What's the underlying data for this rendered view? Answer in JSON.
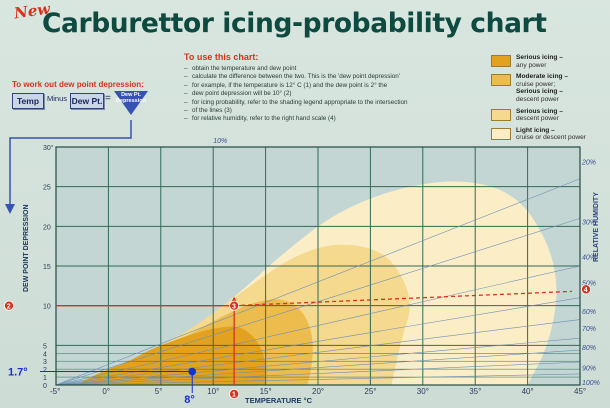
{
  "header": {
    "new_badge": "New",
    "title": "Carburettor icing-probability chart"
  },
  "dew_point_help": {
    "heading": "To work out dew point depression:",
    "temp_label": "Temp",
    "minus_label": "Minus",
    "dewpt_label": "Dew Pt.",
    "equals_label": "=",
    "result_line1": "Dew Pt.",
    "result_line2": "Depression",
    "result_marker": "2"
  },
  "how_to_use": {
    "heading": "To use this chart:",
    "steps": [
      "obtain the temperature and dew point",
      "calculate the difference between the two. This is the 'dew point depression'",
      "for example, if the temperature is 12° C (1) and the dew point is 2° the",
      "dew point depression will be 10° (2)",
      "for icing probability, refer to the shading legend appropriate to the intersection",
      "of the lines (3)",
      "for relative humidity, refer to the right hand scale (4)"
    ]
  },
  "legend": [
    {
      "label": "Serious icing –",
      "sublabel": "any power",
      "color": "#e2a21f"
    },
    {
      "label": "Moderate icing –",
      "sublabel": "cruise power;",
      "label2": "Serious icing –",
      "sublabel2": "descent power",
      "color": "#ecbd4c"
    },
    {
      "label": "Serious icing –",
      "sublabel": "descent power",
      "color": "#f4d98e"
    },
    {
      "label": "Light icing –",
      "sublabel": "cruise or descent power",
      "color": "#fbeec7"
    }
  ],
  "chart_data": {
    "type": "area",
    "title": "Carburettor icing-probability chart",
    "xlabel": "TEMPERATURE °C",
    "ylabel": "DEW POINT DEPRESSION",
    "y2label": "RELATIVE HUMIDITY",
    "xlim": [
      -5,
      45
    ],
    "ylim": [
      0,
      30
    ],
    "x_ticks": [
      "-5°",
      "0°",
      "5°",
      "10°",
      "15°",
      "20°",
      "25°",
      "30°",
      "35°",
      "40°",
      "45°"
    ],
    "x_tick_values": [
      -5,
      0,
      5,
      10,
      15,
      20,
      25,
      30,
      35,
      40,
      45
    ],
    "y_ticks": [
      "0",
      "1",
      "2",
      "3",
      "4",
      "5",
      "10",
      "15",
      "20",
      "25",
      "30°"
    ],
    "y_tick_values": [
      0,
      1,
      2,
      3,
      4,
      5,
      10,
      15,
      20,
      25,
      30
    ],
    "humidity_labels": [
      {
        "label": "10%",
        "y": 30
      },
      {
        "label": "20%",
        "y": 28.2
      },
      {
        "label": "30%",
        "y": 20.6
      },
      {
        "label": "40%",
        "y": 16.2
      },
      {
        "label": "50%",
        "y": 12.9
      },
      {
        "label": "60%",
        "y": 9.3
      },
      {
        "label": "70%",
        "y": 7.2
      },
      {
        "label": "80%",
        "y": 4.8
      },
      {
        "label": "90%",
        "y": 2.2
      },
      {
        "label": "100%",
        "y": 0.4
      }
    ],
    "humidity_line_slopes": [
      0.52,
      0.42,
      0.3,
      0.22,
      0.165,
      0.118,
      0.088,
      0.058,
      0.028
    ],
    "zones": [
      {
        "name": "Light icing",
        "color": "#fbeec7",
        "points": [
          [
            -3,
            0
          ],
          [
            2,
            2.5
          ],
          [
            7,
            6
          ],
          [
            12,
            11
          ],
          [
            17,
            17
          ],
          [
            22,
            22
          ],
          [
            28,
            25
          ],
          [
            34,
            26
          ],
          [
            39,
            24
          ],
          [
            42,
            18
          ],
          [
            43,
            12
          ],
          [
            42,
            5
          ],
          [
            40,
            0
          ]
        ]
      },
      {
        "name": "Serious icing – descent power",
        "color": "#f4d98e",
        "points": [
          [
            -3,
            0
          ],
          [
            1,
            2.5
          ],
          [
            6,
            5.5
          ],
          [
            10,
            9
          ],
          [
            14,
            13
          ],
          [
            18,
            16.5
          ],
          [
            22,
            18
          ],
          [
            26,
            17
          ],
          [
            28,
            14
          ],
          [
            29,
            10
          ],
          [
            28,
            6
          ],
          [
            27,
            0
          ]
        ]
      },
      {
        "name": "Moderate icing – cruise power; Serious icing – descent power",
        "color": "#ecbd4c",
        "points": [
          [
            -3,
            0
          ],
          [
            0,
            2
          ],
          [
            4,
            4
          ],
          [
            8,
            6.5
          ],
          [
            11,
            8.8
          ],
          [
            14,
            10.5
          ],
          [
            16.5,
            11
          ],
          [
            18.5,
            9.5
          ],
          [
            19.5,
            6.5
          ],
          [
            19.5,
            3
          ],
          [
            19,
            0
          ]
        ]
      },
      {
        "name": "Serious icing – any power",
        "color": "#e2a21f",
        "points": [
          [
            -3,
            0
          ],
          [
            -1,
            1.5
          ],
          [
            2,
            3
          ],
          [
            4,
            4.5
          ],
          [
            7,
            6
          ],
          [
            10,
            7.2
          ],
          [
            12.5,
            7.5
          ],
          [
            14,
            6
          ],
          [
            15,
            3.5
          ],
          [
            15,
            0
          ]
        ]
      }
    ],
    "annotations": [
      {
        "label": "1",
        "x": 12,
        "y": 0,
        "kind": "red-marker"
      },
      {
        "label": "2",
        "x": -5,
        "y": 10,
        "kind": "red-marker"
      },
      {
        "label": "3",
        "x": 12,
        "y": 10,
        "kind": "red-marker"
      },
      {
        "label": "4",
        "x": 45,
        "y": 11.8,
        "kind": "red-marker"
      },
      {
        "label": "1.7°",
        "x": 8,
        "y": 1.7,
        "kind": "blue-point"
      },
      {
        "label": "8°",
        "x": 8,
        "y": 1.7,
        "kind": "blue-point-x"
      }
    ]
  }
}
